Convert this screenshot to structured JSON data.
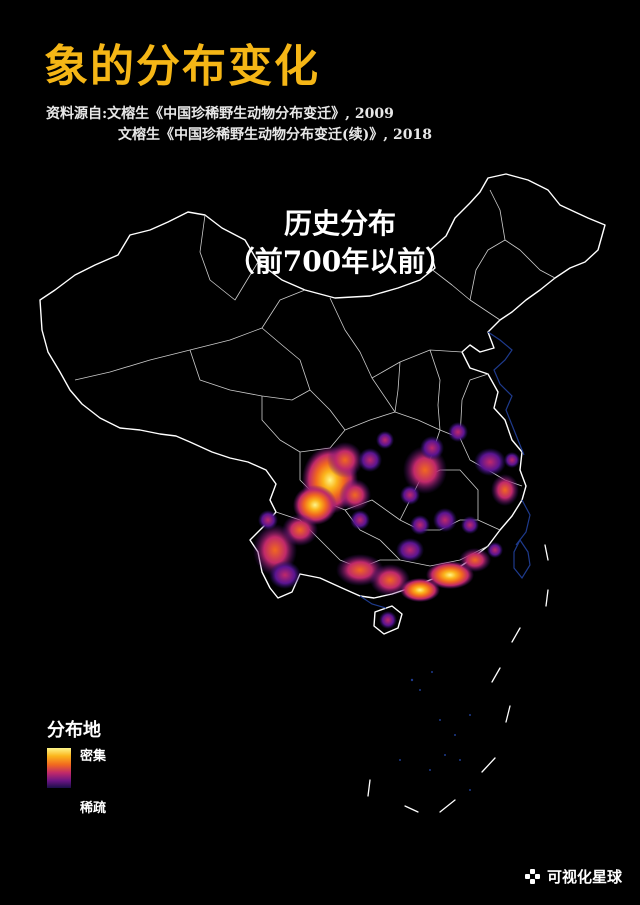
{
  "title": "象的分布变化",
  "source": {
    "line1": "资料源自:文榕生《中国珍稀野生动物分布变迁》, 2009",
    "line2": "文榕生《中国珍稀野生动物分布变迁(续)》, 2018"
  },
  "period": {
    "line1": "历史分布",
    "line2": "（前700年以前）"
  },
  "legend": {
    "title": "分布地",
    "high": "密集",
    "low": "稀疏",
    "colors": [
      "#fdf58a",
      "#fbb51b",
      "#f1681f",
      "#c0296a",
      "#6b1583",
      "#1a0f48"
    ]
  },
  "brand": "可视化星球",
  "colors": {
    "title": "#f5b616",
    "border": "#ffffff",
    "coast": "#1e3a8c"
  }
}
